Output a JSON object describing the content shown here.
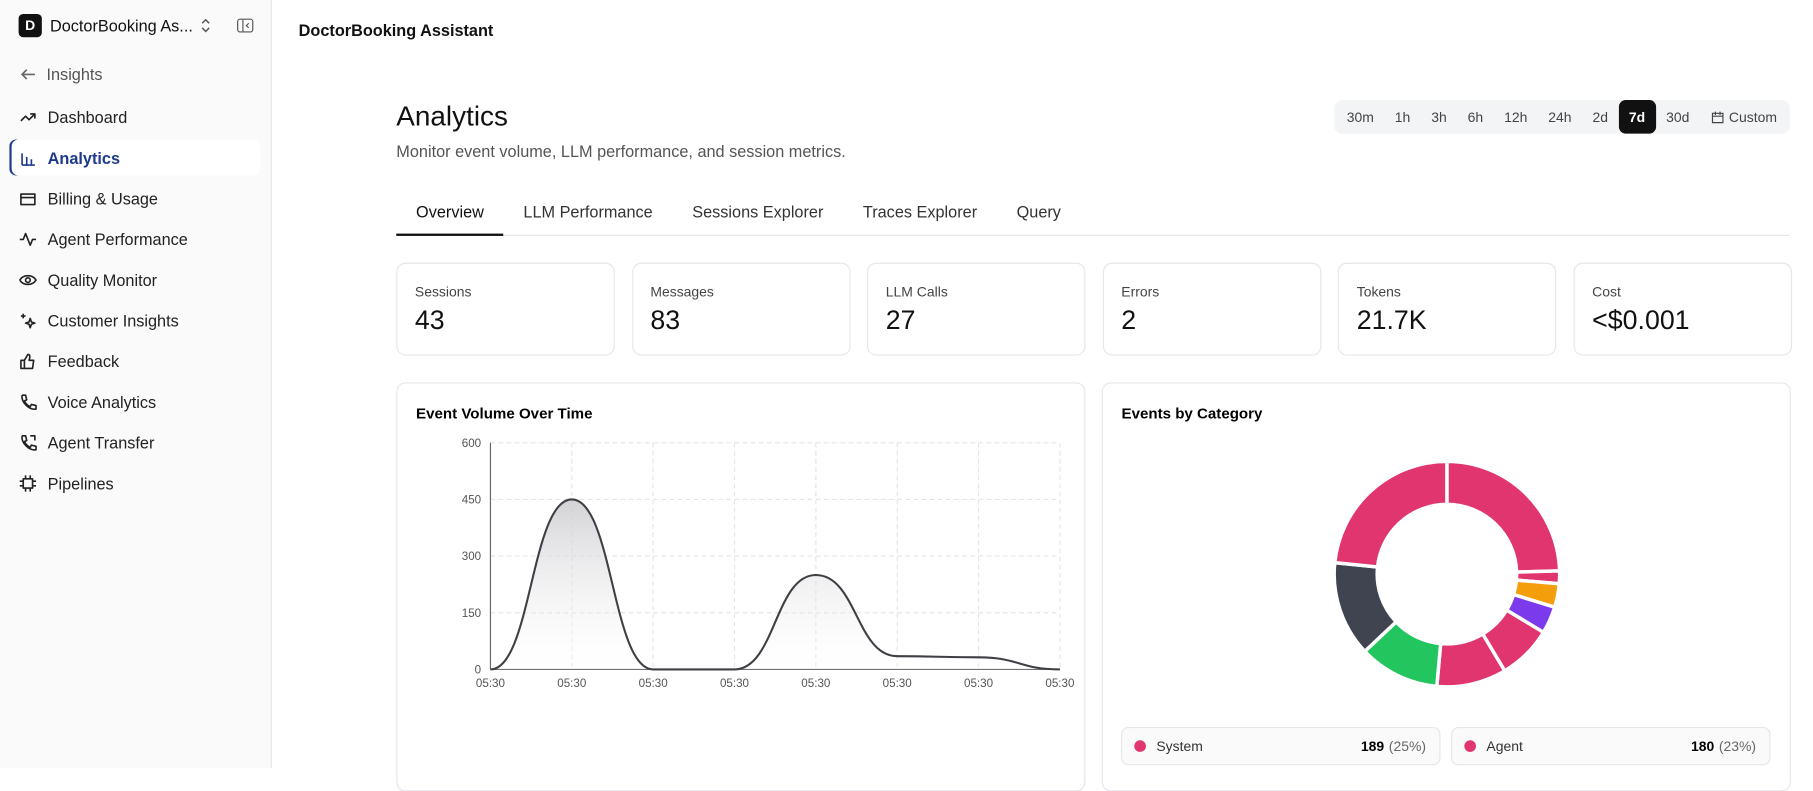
{
  "sidebar": {
    "workspace": "DoctorBooking As...",
    "logo": "D",
    "back": "Insights",
    "nav": [
      "Dashboard",
      "Analytics",
      "Billing & Usage",
      "Agent Performance",
      "Quality Monitor",
      "Customer Insights",
      "Feedback",
      "Voice Analytics",
      "Agent Transfer",
      "Pipelines"
    ],
    "active": "Analytics"
  },
  "header": {
    "title": "DoctorBooking Assistant"
  },
  "page": {
    "title": "Analytics",
    "subtitle": "Monitor event volume, LLM performance, and session metrics."
  },
  "time_ranges": [
    "30m",
    "1h",
    "3h",
    "6h",
    "12h",
    "24h",
    "2d",
    "7d",
    "30d",
    "Custom"
  ],
  "active_range": "7d",
  "tabs": [
    "Overview",
    "LLM Performance",
    "Sessions Explorer",
    "Traces Explorer",
    "Query"
  ],
  "active_tab": "Overview",
  "stats": [
    {
      "label": "Sessions",
      "value": "43"
    },
    {
      "label": "Messages",
      "value": "83"
    },
    {
      "label": "LLM Calls",
      "value": "27"
    },
    {
      "label": "Errors",
      "value": "2"
    },
    {
      "label": "Tokens",
      "value": "21.7K"
    },
    {
      "label": "Cost",
      "value": "<$0.001"
    }
  ],
  "chart_data": [
    {
      "type": "line",
      "title": "Event Volume Over Time",
      "categories": [
        "05:30",
        "05:30",
        "05:30",
        "05:30",
        "05:30",
        "05:30",
        "05:30",
        "05:30"
      ],
      "values": [
        0,
        450,
        0,
        0,
        250,
        35,
        32,
        0
      ],
      "color": "#3f3f46",
      "ylim": [
        0,
        600
      ],
      "yticks": [
        0,
        150,
        300,
        450,
        600
      ],
      "grid": true
    },
    {
      "type": "pie",
      "title": "Events by Category",
      "categories": [
        "System",
        null,
        null,
        null,
        null,
        null,
        null,
        null,
        "Agent"
      ],
      "values": [
        189,
        14,
        26,
        30,
        60,
        77,
        89,
        105,
        180
      ],
      "percent_labels": [
        "(25%)",
        null,
        null,
        null,
        null,
        null,
        null,
        null,
        "(23%)"
      ],
      "colors": [
        "#e0356f",
        "#e0356f",
        "#f59e0b",
        "#7c3aed",
        "#e0356f",
        "#e0356f",
        "#22c55e",
        "#3f4450",
        "#e0356f"
      ]
    }
  ]
}
